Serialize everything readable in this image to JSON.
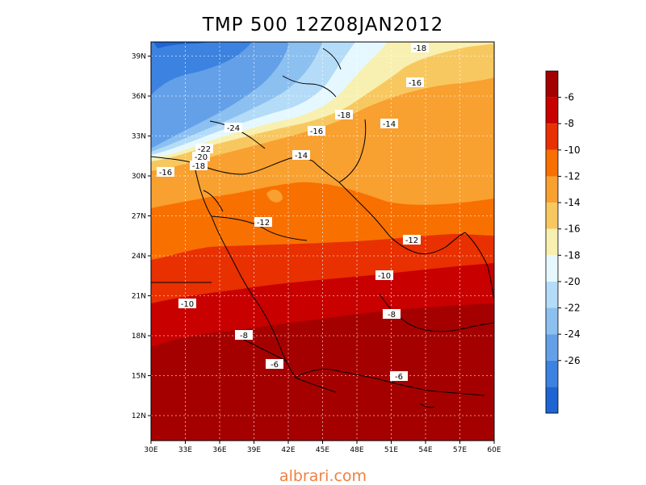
{
  "title": "TMP 500 12Z08JAN2012",
  "watermark": "albrari.com",
  "map": {
    "lon_ticks": [
      "30E",
      "33E",
      "36E",
      "39E",
      "42E",
      "45E",
      "48E",
      "51E",
      "54E",
      "57E",
      "60E"
    ],
    "lat_ticks": [
      "12N",
      "15N",
      "18N",
      "21N",
      "24N",
      "27N",
      "30N",
      "33N",
      "36N",
      "39N"
    ],
    "gridlines": true,
    "contour_labels": [
      "-18",
      "-16",
      "-18",
      "-16",
      "-14",
      "-24",
      "-22",
      "-20",
      "-18",
      "-16",
      "-14",
      "-12",
      "-12",
      "-10",
      "-10",
      "-8",
      "-8",
      "-6",
      "-6"
    ]
  },
  "colorbar": {
    "labels": [
      "-6",
      "-8",
      "-10",
      "-12",
      "-14",
      "-16",
      "-18",
      "-20",
      "-22",
      "-24",
      "-26"
    ],
    "colors": [
      "#a50000",
      "#c80000",
      "#e83000",
      "#f87000",
      "#f8a030",
      "#f8c860",
      "#f8f0b0",
      "#e6f8ff",
      "#b4dcf8",
      "#8cc0f0",
      "#64a0e8",
      "#3c82e0",
      "#1e64d2"
    ]
  }
}
